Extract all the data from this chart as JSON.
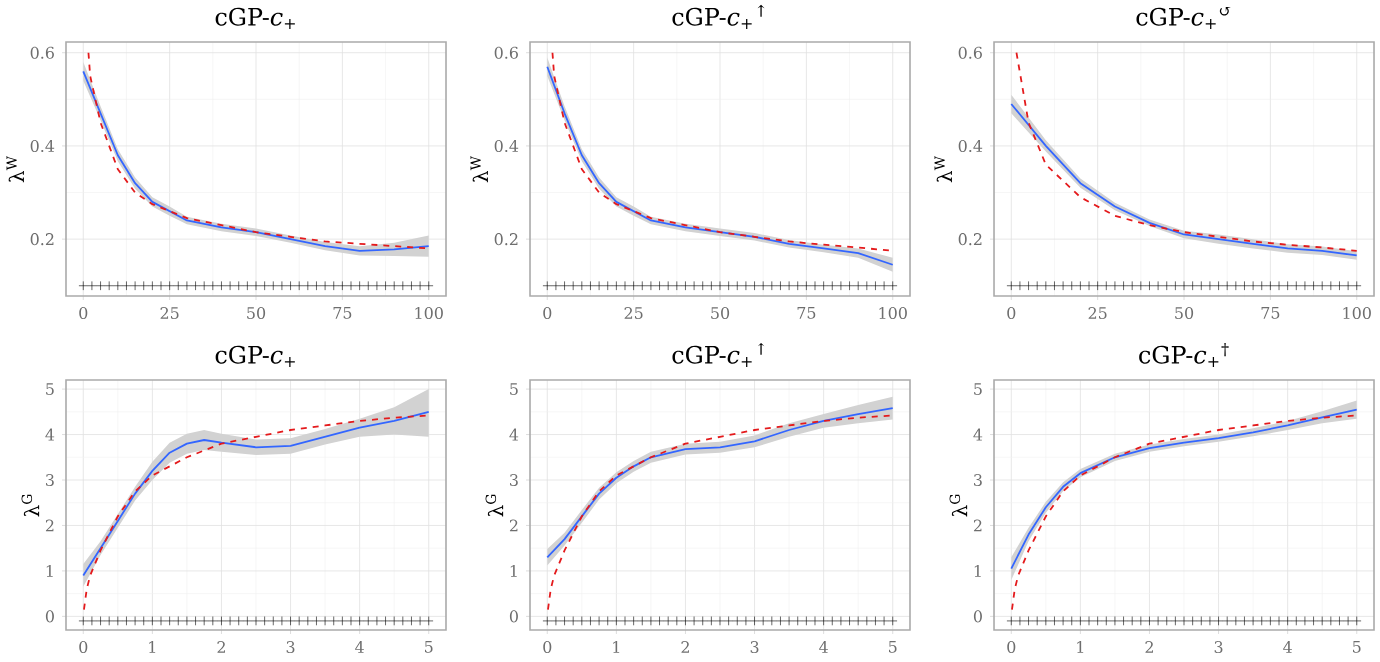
{
  "chart_data": [
    {
      "type": "line",
      "title": "cGP-*c*$_{+}$",
      "ylabel": "λ$^{W}$",
      "xlim": [
        -5,
        105
      ],
      "ylim": [
        0.078,
        0.623
      ],
      "xticks": [
        0,
        25,
        50,
        75,
        100
      ],
      "yticks": [
        0.2,
        0.4,
        0.6
      ],
      "grid": true,
      "series": [
        {
          "type": "line",
          "color": "#3366ff",
          "line_style": "solid",
          "x": [
            0,
            5,
            10,
            15,
            20,
            25,
            30,
            40,
            50,
            60,
            70,
            80,
            90,
            100
          ],
          "values": [
            0.56,
            0.47,
            0.38,
            0.32,
            0.28,
            0.26,
            0.24,
            0.225,
            0.215,
            0.2,
            0.185,
            0.175,
            0.178,
            0.185
          ],
          "lower": [
            0.54,
            0.455,
            0.367,
            0.308,
            0.27,
            0.25,
            0.232,
            0.217,
            0.207,
            0.192,
            0.176,
            0.165,
            0.164,
            0.162
          ],
          "upper": [
            0.58,
            0.485,
            0.393,
            0.332,
            0.29,
            0.27,
            0.248,
            0.233,
            0.223,
            0.208,
            0.194,
            0.185,
            0.192,
            0.208
          ]
        },
        {
          "type": "line",
          "color": "#e41a1c",
          "line_style": "dashed",
          "x": [
            1.5,
            2,
            5,
            10,
            15,
            20,
            30,
            40,
            50,
            60,
            70,
            80,
            90,
            100
          ],
          "values": [
            0.6,
            0.55,
            0.45,
            0.35,
            0.3,
            0.275,
            0.245,
            0.23,
            0.215,
            0.205,
            0.195,
            0.19,
            0.185,
            0.18
          ]
        },
        {
          "type": "scatter",
          "color": "#000000",
          "marker": "cross",
          "x": [
            0,
            2.5,
            5,
            7.5,
            10,
            12.5,
            15,
            17.5,
            20,
            22.5,
            25,
            27.5,
            30,
            32.5,
            35,
            37.5,
            40,
            42.5,
            45,
            47.5,
            50,
            52.5,
            55,
            57.5,
            60,
            62.5,
            65,
            67.5,
            70,
            72.5,
            75,
            77.5,
            80,
            82.5,
            85,
            87.5,
            90,
            92.5,
            95,
            97.5,
            100
          ],
          "values": [
            0.1,
            0.1,
            0.1,
            0.1,
            0.1,
            0.1,
            0.1,
            0.1,
            0.1,
            0.1,
            0.1,
            0.1,
            0.1,
            0.1,
            0.1,
            0.1,
            0.1,
            0.1,
            0.1,
            0.1,
            0.1,
            0.1,
            0.1,
            0.1,
            0.1,
            0.1,
            0.1,
            0.1,
            0.1,
            0.1,
            0.1,
            0.1,
            0.1,
            0.1,
            0.1,
            0.1,
            0.1,
            0.1,
            0.1,
            0.1,
            0.1
          ]
        }
      ]
    },
    {
      "type": "line",
      "title": "cGP-*c*$_{+}$$^{↑}$",
      "ylabel": "λ$^{W}$",
      "xlim": [
        -5,
        105
      ],
      "ylim": [
        0.078,
        0.623
      ],
      "xticks": [
        0,
        25,
        50,
        75,
        100
      ],
      "yticks": [
        0.2,
        0.4,
        0.6
      ],
      "grid": true,
      "series": [
        {
          "type": "line",
          "color": "#3366ff",
          "line_style": "solid",
          "x": [
            0,
            5,
            10,
            15,
            20,
            25,
            30,
            40,
            50,
            60,
            70,
            80,
            90,
            100
          ],
          "values": [
            0.57,
            0.47,
            0.38,
            0.32,
            0.28,
            0.26,
            0.24,
            0.225,
            0.215,
            0.205,
            0.19,
            0.18,
            0.17,
            0.145
          ],
          "lower": [
            0.55,
            0.455,
            0.367,
            0.308,
            0.27,
            0.25,
            0.232,
            0.217,
            0.207,
            0.197,
            0.182,
            0.172,
            0.16,
            0.13
          ],
          "upper": [
            0.59,
            0.485,
            0.393,
            0.332,
            0.29,
            0.27,
            0.248,
            0.233,
            0.223,
            0.213,
            0.198,
            0.188,
            0.18,
            0.16
          ]
        },
        {
          "type": "line",
          "color": "#e41a1c",
          "line_style": "dashed",
          "x": [
            1.5,
            2,
            5,
            10,
            15,
            20,
            30,
            40,
            50,
            60,
            70,
            80,
            90,
            100
          ],
          "values": [
            0.6,
            0.55,
            0.45,
            0.35,
            0.3,
            0.275,
            0.245,
            0.23,
            0.215,
            0.205,
            0.195,
            0.188,
            0.182,
            0.175
          ]
        },
        {
          "type": "scatter",
          "color": "#000000",
          "marker": "cross",
          "x": [
            0,
            2.5,
            5,
            7.5,
            10,
            12.5,
            15,
            17.5,
            20,
            22.5,
            25,
            27.5,
            30,
            32.5,
            35,
            37.5,
            40,
            42.5,
            45,
            47.5,
            50,
            52.5,
            55,
            57.5,
            60,
            62.5,
            65,
            67.5,
            70,
            72.5,
            75,
            77.5,
            80,
            82.5,
            85,
            87.5,
            90,
            92.5,
            95,
            97.5,
            100
          ],
          "values": [
            0.1,
            0.1,
            0.1,
            0.1,
            0.1,
            0.1,
            0.1,
            0.1,
            0.1,
            0.1,
            0.1,
            0.1,
            0.1,
            0.1,
            0.1,
            0.1,
            0.1,
            0.1,
            0.1,
            0.1,
            0.1,
            0.1,
            0.1,
            0.1,
            0.1,
            0.1,
            0.1,
            0.1,
            0.1,
            0.1,
            0.1,
            0.1,
            0.1,
            0.1,
            0.1,
            0.1,
            0.1,
            0.1,
            0.1,
            0.1,
            0.1
          ]
        }
      ]
    },
    {
      "type": "line",
      "title": "cGP-*c*$_{+}$$^{↺}$",
      "ylabel": "λ$^{W}$",
      "xlim": [
        -5,
        105
      ],
      "ylim": [
        0.078,
        0.623
      ],
      "xticks": [
        0,
        25,
        50,
        75,
        100
      ],
      "yticks": [
        0.2,
        0.4,
        0.6
      ],
      "grid": true,
      "series": [
        {
          "type": "line",
          "color": "#3366ff",
          "line_style": "solid",
          "x": [
            0,
            10,
            20,
            30,
            40,
            50,
            60,
            70,
            80,
            90,
            100
          ],
          "values": [
            0.49,
            0.4,
            0.32,
            0.27,
            0.235,
            0.21,
            0.2,
            0.19,
            0.18,
            0.175,
            0.165
          ],
          "lower": [
            0.47,
            0.388,
            0.31,
            0.262,
            0.228,
            0.202,
            0.19,
            0.18,
            0.171,
            0.166,
            0.156
          ],
          "upper": [
            0.51,
            0.412,
            0.33,
            0.278,
            0.242,
            0.218,
            0.21,
            0.2,
            0.189,
            0.184,
            0.174
          ]
        },
        {
          "type": "line",
          "color": "#e41a1c",
          "line_style": "dashed",
          "x": [
            1.5,
            5,
            10,
            20,
            30,
            40,
            50,
            60,
            70,
            80,
            90,
            100
          ],
          "values": [
            0.6,
            0.45,
            0.36,
            0.29,
            0.25,
            0.23,
            0.215,
            0.205,
            0.195,
            0.188,
            0.182,
            0.175
          ]
        },
        {
          "type": "scatter",
          "color": "#000000",
          "marker": "cross",
          "x": [
            0,
            2.5,
            5,
            7.5,
            10,
            12.5,
            15,
            17.5,
            20,
            22.5,
            25,
            27.5,
            30,
            32.5,
            35,
            37.5,
            40,
            42.5,
            45,
            47.5,
            50,
            52.5,
            55,
            57.5,
            60,
            62.5,
            65,
            67.5,
            70,
            72.5,
            75,
            77.5,
            80,
            82.5,
            85,
            87.5,
            90,
            92.5,
            95,
            97.5,
            100
          ],
          "values": [
            0.1,
            0.1,
            0.1,
            0.1,
            0.1,
            0.1,
            0.1,
            0.1,
            0.1,
            0.1,
            0.1,
            0.1,
            0.1,
            0.1,
            0.1,
            0.1,
            0.1,
            0.1,
            0.1,
            0.1,
            0.1,
            0.1,
            0.1,
            0.1,
            0.1,
            0.1,
            0.1,
            0.1,
            0.1,
            0.1,
            0.1,
            0.1,
            0.1,
            0.1,
            0.1,
            0.1,
            0.1,
            0.1,
            0.1,
            0.1,
            0.1
          ]
        }
      ]
    },
    {
      "type": "line",
      "title": "cGP-*c*$_{+}$",
      "ylabel": "λ$^{G}$",
      "xlim": [
        -0.25,
        5.25
      ],
      "ylim": [
        -0.3,
        5.2
      ],
      "xticks": [
        0,
        1,
        2,
        3,
        4,
        5
      ],
      "yticks": [
        0,
        1,
        2,
        3,
        4,
        5
      ],
      "grid": true,
      "series": [
        {
          "type": "line",
          "color": "#3366ff",
          "line_style": "solid",
          "x": [
            0,
            0.25,
            0.5,
            0.75,
            1,
            1.25,
            1.5,
            1.75,
            2,
            2.5,
            3,
            3.5,
            4,
            4.5,
            5
          ],
          "values": [
            0.9,
            1.5,
            2.1,
            2.7,
            3.2,
            3.6,
            3.8,
            3.88,
            3.82,
            3.72,
            3.75,
            3.95,
            4.15,
            4.3,
            4.5
          ],
          "lower": [
            0.65,
            1.35,
            1.95,
            2.55,
            3.0,
            3.38,
            3.58,
            3.66,
            3.62,
            3.55,
            3.58,
            3.78,
            3.95,
            4.0,
            3.95
          ],
          "upper": [
            1.15,
            1.65,
            2.25,
            2.85,
            3.4,
            3.82,
            4.02,
            4.1,
            4.02,
            3.89,
            3.92,
            4.12,
            4.35,
            4.6,
            5.0
          ]
        },
        {
          "type": "line",
          "color": "#e41a1c",
          "line_style": "dashed",
          "x": [
            0.01,
            0.05,
            0.1,
            0.25,
            0.5,
            0.75,
            1,
            1.5,
            2,
            2.5,
            3,
            3.5,
            4,
            4.5,
            5
          ],
          "values": [
            0.15,
            0.6,
            0.9,
            1.45,
            2.2,
            2.75,
            3.1,
            3.5,
            3.8,
            3.95,
            4.1,
            4.2,
            4.3,
            4.37,
            4.42
          ]
        },
        {
          "type": "scatter",
          "color": "#000000",
          "marker": "cross",
          "x": [
            0,
            0.125,
            0.25,
            0.375,
            0.5,
            0.625,
            0.75,
            0.875,
            1,
            1.125,
            1.25,
            1.375,
            1.5,
            1.625,
            1.75,
            1.875,
            2,
            2.125,
            2.25,
            2.375,
            2.5,
            2.625,
            2.75,
            2.875,
            3,
            3.125,
            3.25,
            3.375,
            3.5,
            3.625,
            3.75,
            3.875,
            4,
            4.125,
            4.25,
            4.375,
            4.5,
            4.625,
            4.75,
            4.875,
            5
          ],
          "values": [
            -0.1,
            -0.1,
            -0.1,
            -0.1,
            -0.1,
            -0.1,
            -0.1,
            -0.1,
            -0.1,
            -0.1,
            -0.1,
            -0.1,
            -0.1,
            -0.1,
            -0.1,
            -0.1,
            -0.1,
            -0.1,
            -0.1,
            -0.1,
            -0.1,
            -0.1,
            -0.1,
            -0.1,
            -0.1,
            -0.1,
            -0.1,
            -0.1,
            -0.1,
            -0.1,
            -0.1,
            -0.1,
            -0.1,
            -0.1,
            -0.1,
            -0.1,
            -0.1,
            -0.1,
            -0.1,
            -0.1,
            -0.1
          ]
        }
      ]
    },
    {
      "type": "line",
      "title": "cGP-*c*$_{+}$$^{↑}$",
      "ylabel": "λ$^{G}$",
      "xlim": [
        -0.25,
        5.25
      ],
      "ylim": [
        -0.3,
        5.2
      ],
      "xticks": [
        0,
        1,
        2,
        3,
        4,
        5
      ],
      "yticks": [
        0,
        1,
        2,
        3,
        4,
        5
      ],
      "grid": true,
      "series": [
        {
          "type": "line",
          "color": "#3366ff",
          "line_style": "solid",
          "x": [
            0,
            0.25,
            0.5,
            0.75,
            1,
            1.25,
            1.5,
            2,
            2.5,
            3,
            3.5,
            4,
            4.5,
            5
          ],
          "values": [
            1.3,
            1.7,
            2.2,
            2.7,
            3.05,
            3.3,
            3.5,
            3.68,
            3.72,
            3.85,
            4.1,
            4.3,
            4.45,
            4.58
          ],
          "lower": [
            1.12,
            1.56,
            2.06,
            2.57,
            2.93,
            3.18,
            3.38,
            3.56,
            3.6,
            3.72,
            3.95,
            4.15,
            4.25,
            4.33
          ],
          "upper": [
            1.48,
            1.84,
            2.34,
            2.83,
            3.17,
            3.42,
            3.62,
            3.8,
            3.84,
            3.98,
            4.25,
            4.45,
            4.65,
            4.83
          ]
        },
        {
          "type": "line",
          "color": "#e41a1c",
          "line_style": "dashed",
          "x": [
            0.01,
            0.05,
            0.1,
            0.25,
            0.5,
            0.75,
            1,
            1.5,
            2,
            2.5,
            3,
            3.5,
            4,
            4.5,
            5
          ],
          "values": [
            0.15,
            0.6,
            0.9,
            1.45,
            2.2,
            2.75,
            3.1,
            3.5,
            3.8,
            3.95,
            4.1,
            4.2,
            4.3,
            4.37,
            4.42
          ]
        },
        {
          "type": "scatter",
          "color": "#000000",
          "marker": "cross",
          "x": [
            0,
            0.125,
            0.25,
            0.375,
            0.5,
            0.625,
            0.75,
            0.875,
            1,
            1.125,
            1.25,
            1.375,
            1.5,
            1.625,
            1.75,
            1.875,
            2,
            2.125,
            2.25,
            2.375,
            2.5,
            2.625,
            2.75,
            2.875,
            3,
            3.125,
            3.25,
            3.375,
            3.5,
            3.625,
            3.75,
            3.875,
            4,
            4.125,
            4.25,
            4.375,
            4.5,
            4.625,
            4.75,
            4.875,
            5
          ],
          "values": [
            -0.1,
            -0.1,
            -0.1,
            -0.1,
            -0.1,
            -0.1,
            -0.1,
            -0.1,
            -0.1,
            -0.1,
            -0.1,
            -0.1,
            -0.1,
            -0.1,
            -0.1,
            -0.1,
            -0.1,
            -0.1,
            -0.1,
            -0.1,
            -0.1,
            -0.1,
            -0.1,
            -0.1,
            -0.1,
            -0.1,
            -0.1,
            -0.1,
            -0.1,
            -0.1,
            -0.1,
            -0.1,
            -0.1,
            -0.1,
            -0.1,
            -0.1,
            -0.1,
            -0.1,
            -0.1,
            -0.1,
            -0.1
          ]
        }
      ]
    },
    {
      "type": "line",
      "title": "cGP-*c*$_{+}$$^{†}$",
      "ylabel": "λ$^{G}$",
      "xlim": [
        -0.25,
        5.25
      ],
      "ylim": [
        -0.3,
        5.2
      ],
      "xticks": [
        0,
        1,
        2,
        3,
        4,
        5
      ],
      "yticks": [
        0,
        1,
        2,
        3,
        4,
        5
      ],
      "grid": true,
      "series": [
        {
          "type": "line",
          "color": "#3366ff",
          "line_style": "solid",
          "x": [
            0,
            0.25,
            0.5,
            0.75,
            1,
            1.5,
            2,
            2.5,
            3,
            3.5,
            4,
            4.5,
            5
          ],
          "values": [
            1.05,
            1.8,
            2.4,
            2.85,
            3.15,
            3.5,
            3.7,
            3.82,
            3.92,
            4.05,
            4.2,
            4.38,
            4.55
          ],
          "lower": [
            0.8,
            1.65,
            2.28,
            2.75,
            3.06,
            3.42,
            3.62,
            3.74,
            3.84,
            3.96,
            4.1,
            4.25,
            4.35
          ],
          "upper": [
            1.3,
            1.95,
            2.52,
            2.95,
            3.24,
            3.58,
            3.78,
            3.9,
            4.0,
            4.14,
            4.3,
            4.51,
            4.75
          ]
        },
        {
          "type": "line",
          "color": "#e41a1c",
          "line_style": "dashed",
          "x": [
            0.01,
            0.05,
            0.1,
            0.25,
            0.5,
            0.75,
            1,
            1.5,
            2,
            2.5,
            3,
            3.5,
            4,
            4.5,
            5
          ],
          "values": [
            0.15,
            0.6,
            0.9,
            1.45,
            2.2,
            2.75,
            3.1,
            3.5,
            3.8,
            3.95,
            4.1,
            4.2,
            4.3,
            4.37,
            4.42
          ]
        },
        {
          "type": "scatter",
          "color": "#000000",
          "marker": "cross",
          "x": [
            0,
            0.125,
            0.25,
            0.375,
            0.5,
            0.625,
            0.75,
            0.875,
            1,
            1.125,
            1.25,
            1.375,
            1.5,
            1.625,
            1.75,
            1.875,
            2,
            2.125,
            2.25,
            2.375,
            2.5,
            2.625,
            2.75,
            2.875,
            3,
            3.125,
            3.25,
            3.375,
            3.5,
            3.625,
            3.75,
            3.875,
            4,
            4.125,
            4.25,
            4.375,
            4.5,
            4.625,
            4.75,
            4.875,
            5
          ],
          "values": [
            -0.1,
            -0.1,
            -0.1,
            -0.1,
            -0.1,
            -0.1,
            -0.1,
            -0.1,
            -0.1,
            -0.1,
            -0.1,
            -0.1,
            -0.1,
            -0.1,
            -0.1,
            -0.1,
            -0.1,
            -0.1,
            -0.1,
            -0.1,
            -0.1,
            -0.1,
            -0.1,
            -0.1,
            -0.1,
            -0.1,
            -0.1,
            -0.1,
            -0.1,
            -0.1,
            -0.1,
            -0.1,
            -0.1,
            -0.1,
            -0.1,
            -0.1,
            -0.1,
            -0.1,
            -0.1,
            -0.1,
            -0.1
          ]
        }
      ]
    }
  ]
}
